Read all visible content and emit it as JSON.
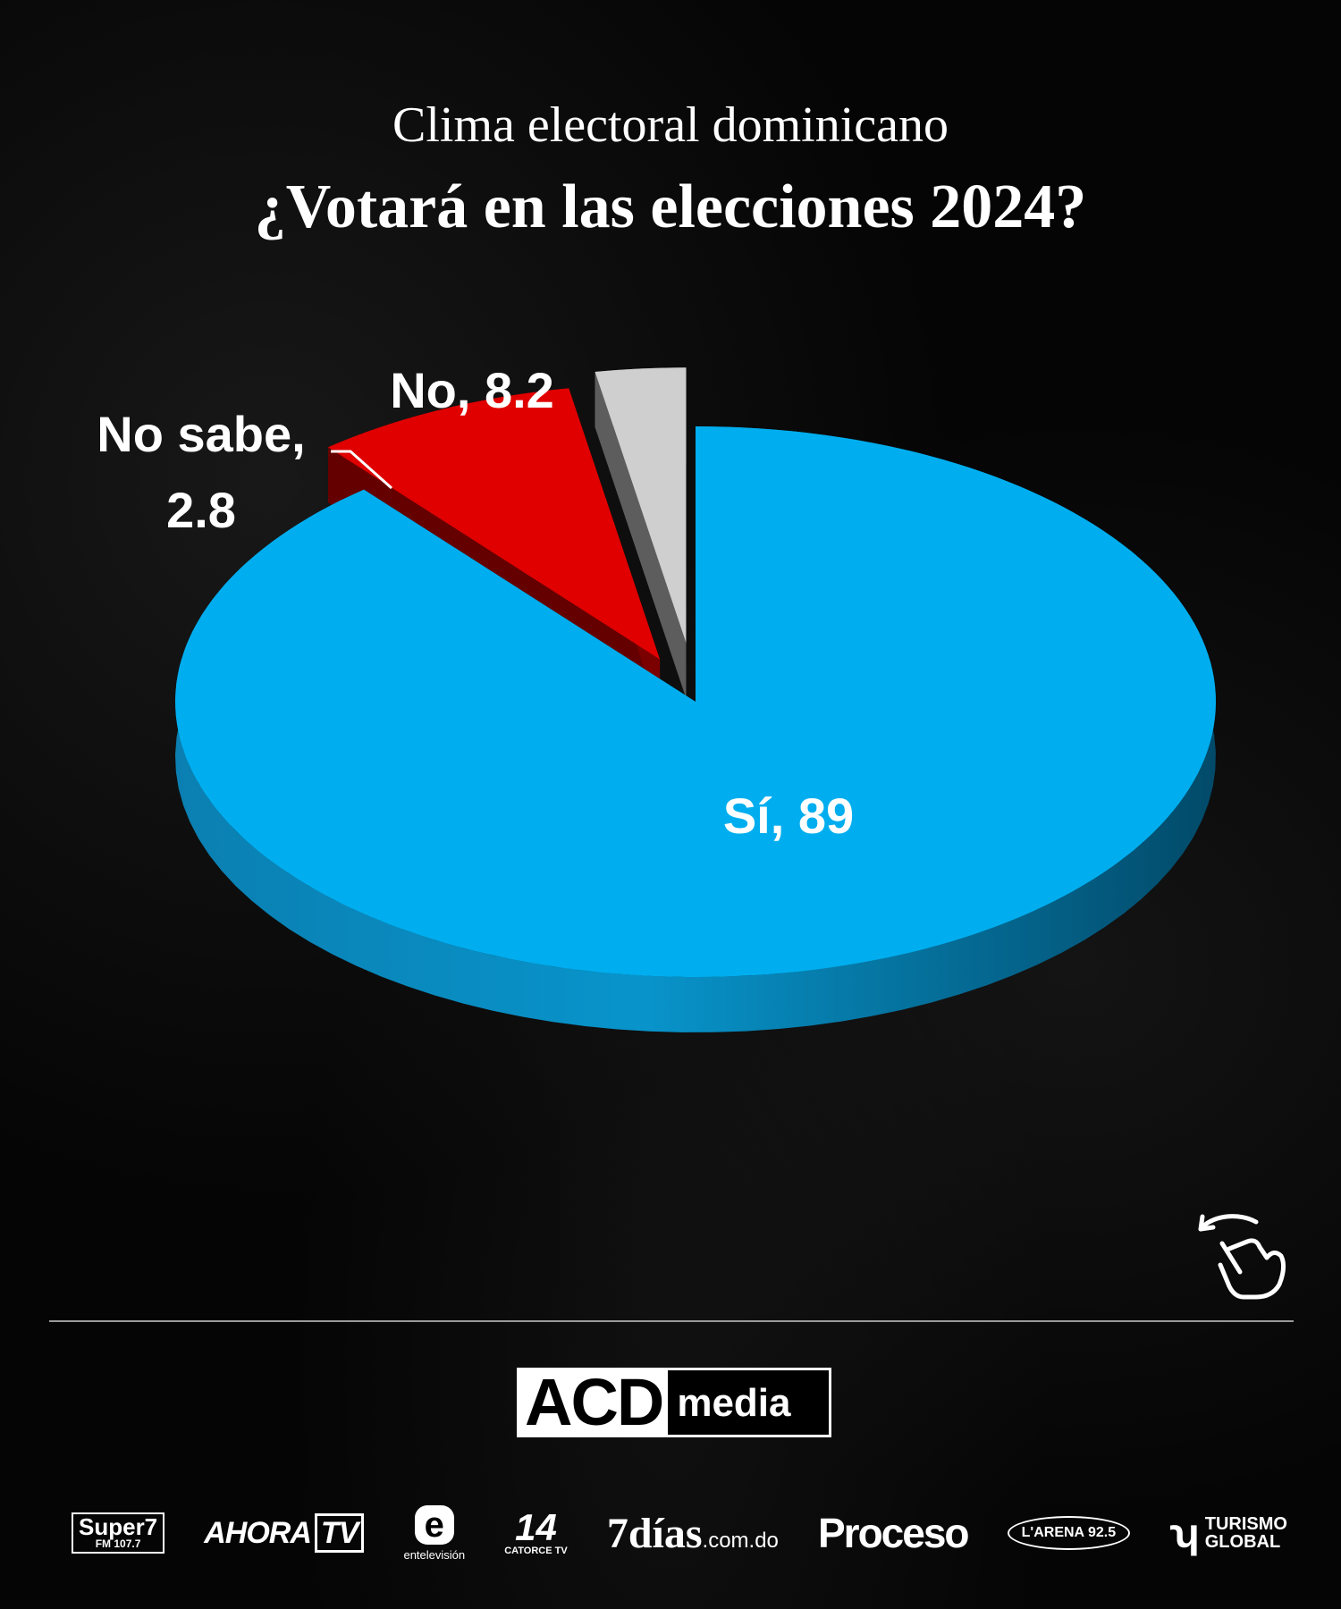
{
  "header": {
    "subtitle": "Clima electoral dominicano",
    "title": "¿Votará en las elecciones 2024?"
  },
  "chart_data": {
    "type": "pie",
    "style": "3d exploded",
    "slices": [
      {
        "name": "Sí",
        "label": "Sí, 89",
        "value": 89,
        "color": "#00aeef"
      },
      {
        "name": "No",
        "label": "No, 8.2",
        "value": 8.2,
        "color": "#e00000"
      },
      {
        "name": "No sabe",
        "label_line1": "No sabe,",
        "label_line2": "2.8",
        "value": 2.8,
        "color": "#cfcfcf"
      }
    ]
  },
  "icons": {
    "swipe": "swipe-hand-icon"
  },
  "footer": {
    "brand_main": "ACD",
    "brand_sub": "media",
    "partners": {
      "super_name": "Super7",
      "super_freq": "FM 107.7",
      "ahora": "AHORA",
      "ahora_tv": "TV",
      "ent_letter": "e",
      "ent_name": "entelevisión",
      "catorce_mark": "14",
      "catorce_name": "CATORCE TV",
      "dias_num": "7",
      "dias_name": "días",
      "dias_tld": ".com.do",
      "proceso": "Proceso",
      "arena": "L'ARENA 92.5",
      "turismo_line1": "TURISMO",
      "turismo_line2": "GLOBAL"
    }
  }
}
